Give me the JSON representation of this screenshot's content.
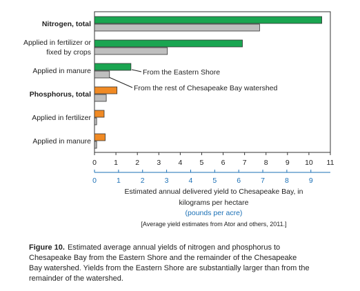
{
  "chart_data": {
    "type": "hbar",
    "categories": [
      "Nitrogen, total",
      "Applied in fertilizer or fixed by crops",
      "Applied in manure",
      "Phosphorus, total",
      "Applied in fertilizer",
      "Applied in manure"
    ],
    "series": [
      {
        "name": "From the Eastern Shore",
        "colors": [
          "#1aa551",
          "#1aa551",
          "#1aa551",
          "#f08a24",
          "#f08a24",
          "#f08a24"
        ],
        "values": [
          10.6,
          6.9,
          1.7,
          1.05,
          0.45,
          0.5
        ]
      },
      {
        "name": "From the rest of Chesapeake Bay watershed",
        "color": "#bfbfbf",
        "values": [
          7.7,
          3.4,
          0.7,
          0.55,
          0.1,
          0.1
        ]
      }
    ],
    "xlim": [
      0,
      11
    ],
    "xticks": [
      0,
      1,
      2,
      3,
      4,
      5,
      6,
      7,
      8,
      9,
      10,
      11
    ],
    "x2lim": [
      0,
      9.81
    ],
    "x2ticks": [
      0,
      1,
      2,
      3,
      4,
      5,
      6,
      7,
      8,
      9
    ],
    "x2color": "#1a6fb5",
    "xlabel": "Estimated annual delivered yield to Chesapeake Bay, in kilograms per hectare",
    "x2label": "(pounds per acre)",
    "note": "[Average yield estimates from Ator and others, 2011.]"
  },
  "caption": {
    "label": "Figure 10.",
    "text": "Estimated average annual yields of nitrogen and phosphorus to Chesapeake Bay from the Eastern Shore and the remainder of the Chesapeake Bay watershed. Yields from the Eastern Shore are substantially larger than from the remainder of the watershed."
  }
}
